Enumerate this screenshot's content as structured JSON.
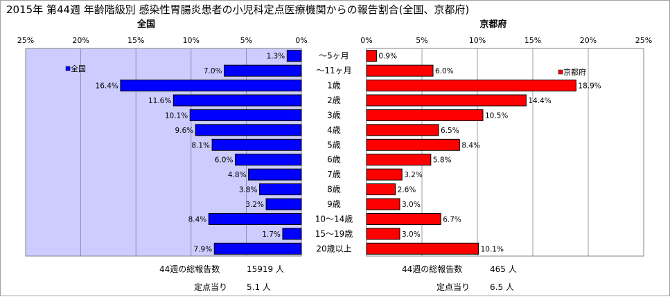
{
  "title": "2015年 第44週 年齢階級別 感染性胃腸炎患者の小児科定点医療機関からの報告割合(全国、京都府)",
  "colors": {
    "national": "#0000ff",
    "kyoto": "#ff0000",
    "plot_bg_national": "#ccccff",
    "plot_bg_kyoto": "#ffffff",
    "grid": "#8080a0"
  },
  "chart_data": [
    {
      "type": "bar",
      "orientation": "horizontal",
      "direction": "leftward",
      "subtitle": "全国",
      "legend": "全国",
      "legend_position": "top-left",
      "xlim": [
        0,
        25
      ],
      "ticks": [
        "0%",
        "5%",
        "10%",
        "15%",
        "20%",
        "25%"
      ],
      "grid": true,
      "categories": [
        "～5ヶ月",
        "～11ヶ月",
        "1歳",
        "2歳",
        "3歳",
        "4歳",
        "5歳",
        "6歳",
        "7歳",
        "8歳",
        "9歳",
        "10～14歳",
        "15～19歳",
        "20歳以上"
      ],
      "values": [
        1.3,
        7.0,
        16.4,
        11.6,
        10.1,
        9.6,
        8.1,
        6.0,
        4.8,
        3.8,
        3.2,
        8.4,
        1.7,
        7.9
      ],
      "labels": [
        "1.3%",
        "7.0%",
        "16.4%",
        "11.6%",
        "10.1%",
        "9.6%",
        "8.1%",
        "6.0%",
        "4.8%",
        "3.8%",
        "3.2%",
        "8.4%",
        "1.7%",
        "7.9%"
      ]
    },
    {
      "type": "bar",
      "orientation": "horizontal",
      "direction": "rightward",
      "subtitle": "京都府",
      "legend": "京都府",
      "legend_position": "top-right",
      "xlim": [
        0,
        25
      ],
      "ticks": [
        "0%",
        "5%",
        "10%",
        "15%",
        "20%",
        "25%"
      ],
      "grid": true,
      "categories": [
        "～5ヶ月",
        "～11ヶ月",
        "1歳",
        "2歳",
        "3歳",
        "4歳",
        "5歳",
        "6歳",
        "7歳",
        "8歳",
        "9歳",
        "10～14歳",
        "15～19歳",
        "20歳以上"
      ],
      "values": [
        0.9,
        6.0,
        18.9,
        14.4,
        10.5,
        6.5,
        8.4,
        5.8,
        3.2,
        2.6,
        3.0,
        6.7,
        3.0,
        10.1
      ],
      "labels": [
        "0.9%",
        "6.0%",
        "18.9%",
        "14.4%",
        "10.5%",
        "6.5%",
        "8.4%",
        "5.8%",
        "3.2%",
        "2.6%",
        "3.0%",
        "6.7%",
        "3.0%",
        "10.1%"
      ]
    }
  ],
  "summary": {
    "national": {
      "total_label": "44週の総報告数",
      "total_value": "15919 人",
      "per_label": "定点当り",
      "per_value": "5.1 人"
    },
    "kyoto": {
      "total_label": "44週の総報告数",
      "total_value": "465 人",
      "per_label": "定点当り",
      "per_value": "6.5 人"
    }
  }
}
